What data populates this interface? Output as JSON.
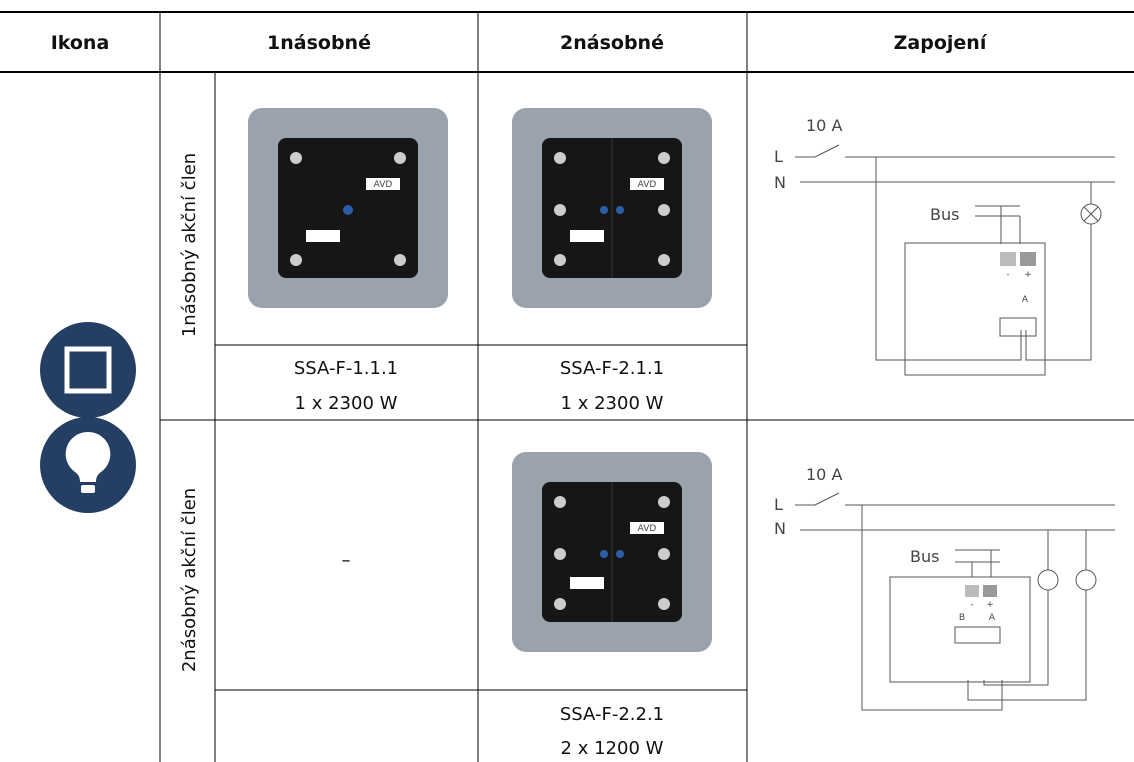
{
  "header": [
    "Ikona",
    "1násobné",
    "2násobné",
    "Zapojení"
  ],
  "rows": [
    {
      "label": "1násobný akční člen",
      "cells": [
        {
          "model": "SSA-F-1.1.1",
          "power": "1 x 2300 W",
          "tag": "AVD"
        },
        {
          "model": "SSA-F-2.1.1",
          "power": "1 x 2300 W",
          "tag": "AVD"
        }
      ],
      "wiring": {
        "current": "10 A",
        "phase": "L",
        "neutral": "N",
        "bus": "Bus",
        "minus": "-",
        "plus": "+",
        "out_a": "A"
      }
    },
    {
      "label": "2násobný akční člen",
      "cells": [
        {
          "text": "–"
        },
        {
          "model": "SSA-F-2.2.1",
          "power": "2 x 1200 W",
          "tag": "AVD"
        }
      ],
      "wiring": {
        "current": "10 A",
        "phase": "L",
        "neutral": "N",
        "bus": "Bus",
        "minus": "-",
        "plus": "+",
        "out_a": "A",
        "out_b": "B"
      }
    }
  ]
}
